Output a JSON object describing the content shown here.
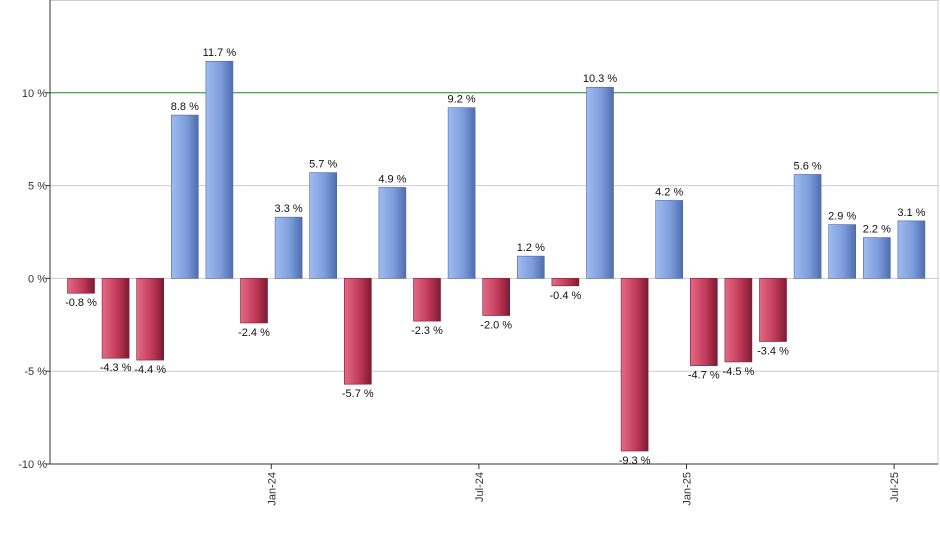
{
  "chart_data": {
    "type": "bar",
    "title": "",
    "xlabel": "",
    "ylabel": "",
    "ylim": [
      -10,
      15
    ],
    "grid": true,
    "legend": "none",
    "reference_line": {
      "value": 10,
      "color": "#2e7d32"
    },
    "colors": {
      "positive": "#7f9fde",
      "positive_dark": "#5a7ac0",
      "negative": "#c23b5a",
      "negative_dark": "#8a1f38",
      "grid": "#cccccc",
      "axis": "#333333"
    },
    "y_ticks": [
      {
        "value": 10,
        "label": "10 %"
      },
      {
        "value": 5,
        "label": "5 %"
      },
      {
        "value": 0,
        "label": "0 %"
      },
      {
        "value": -5,
        "label": "-5 %"
      },
      {
        "value": -10,
        "label": "-10 %"
      }
    ],
    "x_ticks": [
      {
        "index": 5.5,
        "label": "Jan-24"
      },
      {
        "index": 11.5,
        "label": "Jul-24"
      },
      {
        "index": 17.5,
        "label": "Jan-25"
      },
      {
        "index": 23.5,
        "label": "Jul-25"
      }
    ],
    "values": [
      -0.8,
      -4.3,
      -4.4,
      8.8,
      11.7,
      -2.4,
      3.3,
      5.7,
      -5.7,
      4.9,
      -2.3,
      9.2,
      -2.0,
      1.2,
      -0.4,
      10.3,
      -9.3,
      4.2,
      -4.7,
      -4.5,
      -3.4,
      5.6,
      2.9,
      2.2,
      3.1
    ],
    "labels": [
      "-0.8 %",
      "-4.3 %",
      "-4.4 %",
      "8.8 %",
      "11.7 %",
      "-2.4 %",
      "3.3 %",
      "5.7 %",
      "-5.7 %",
      "4.9 %",
      "-2.3 %",
      "9.2 %",
      "-2.0 %",
      "1.2 %",
      "-0.4 %",
      "10.3 %",
      "-9.3 %",
      "4.2 %",
      "-4.7 %",
      "-4.5 %",
      "-3.4 %",
      "5.6 %",
      "2.9 %",
      "2.2 %",
      "3.1 %"
    ]
  }
}
